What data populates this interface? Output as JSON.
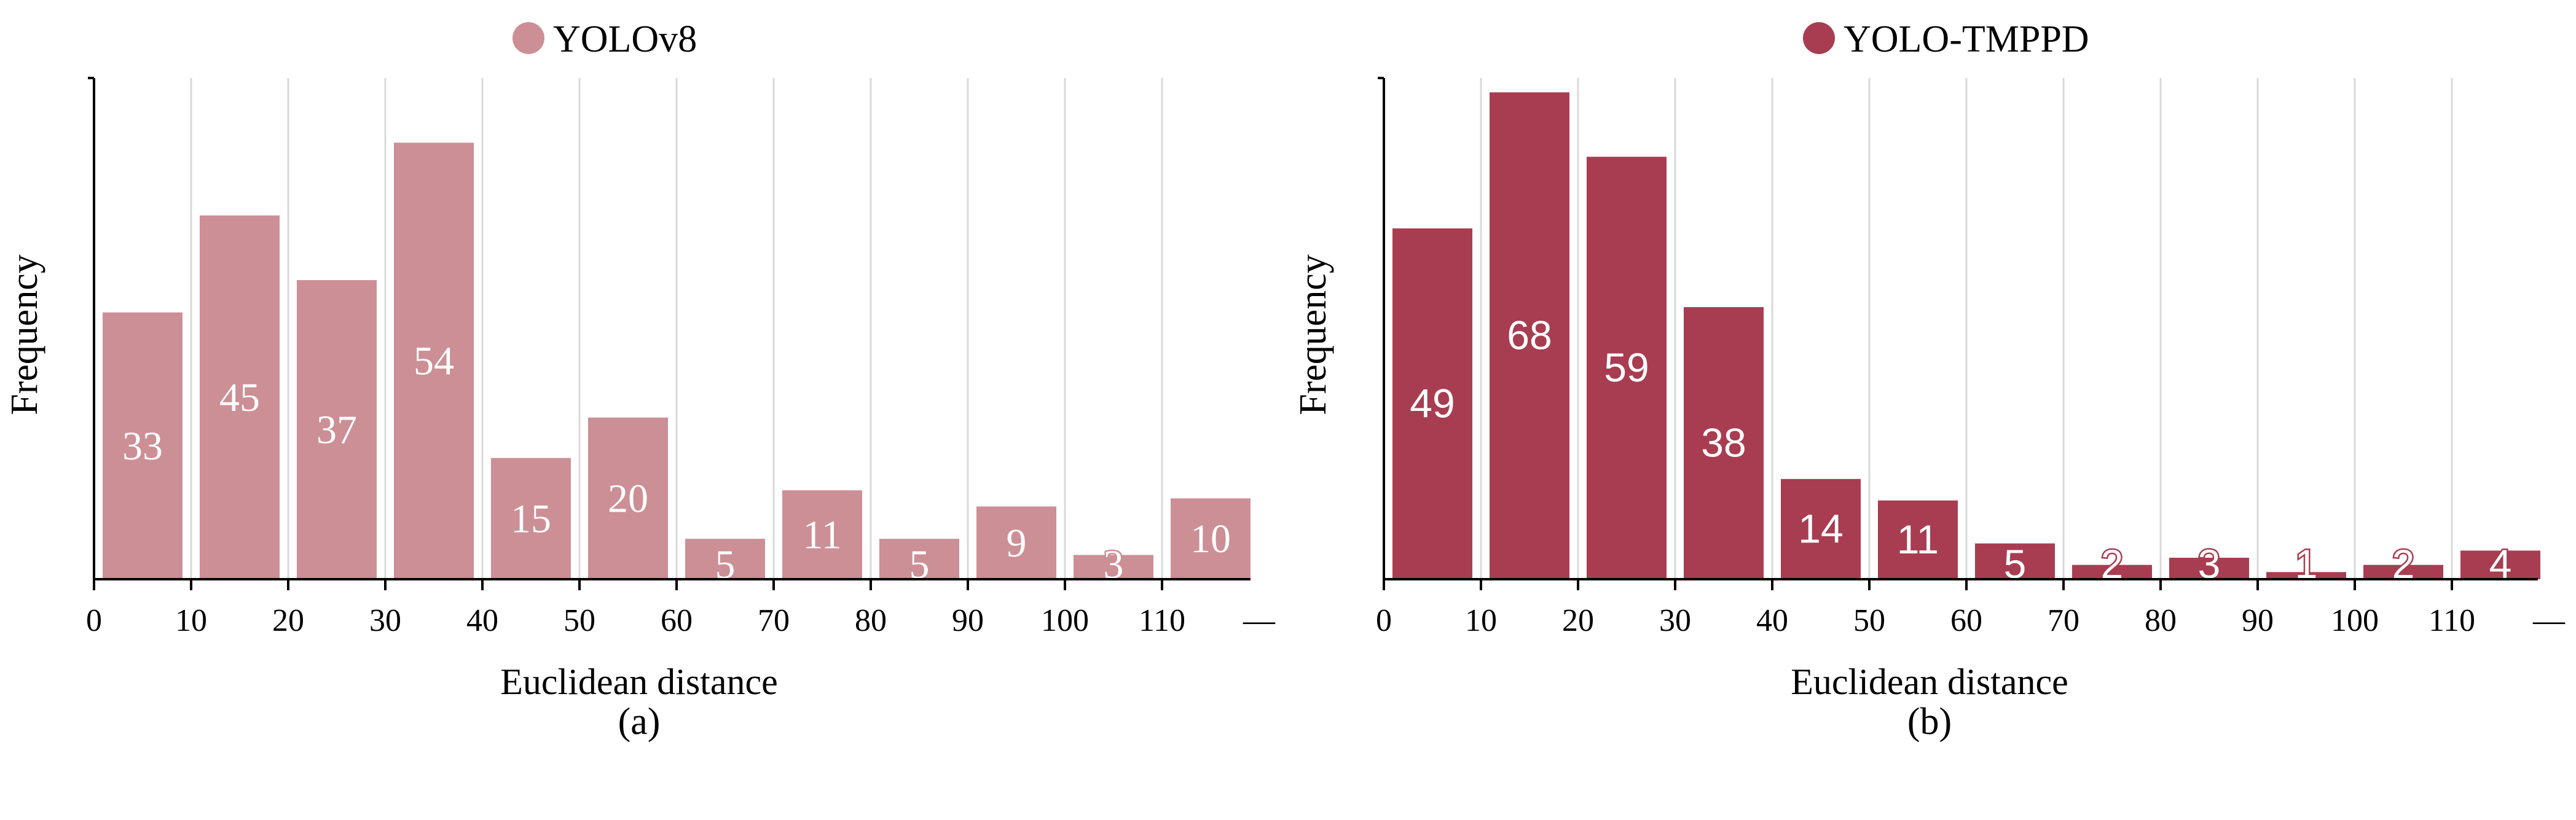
{
  "chart_data": [
    {
      "type": "bar",
      "panel_label": "(a)",
      "legend": "YOLOv8",
      "legend_position": "top-center",
      "xlabel": "Euclidean distance",
      "ylabel": "Frequency",
      "x_ticks": [
        "0",
        "10",
        "20",
        "30",
        "40",
        "50",
        "60",
        "70",
        "80",
        "90",
        "100",
        "110",
        "—"
      ],
      "bins": [
        [
          0,
          10
        ],
        [
          10,
          20
        ],
        [
          20,
          30
        ],
        [
          30,
          40
        ],
        [
          40,
          50
        ],
        [
          50,
          60
        ],
        [
          60,
          70
        ],
        [
          70,
          80
        ],
        [
          80,
          90
        ],
        [
          90,
          100
        ],
        [
          100,
          110
        ],
        [
          110,
          120
        ]
      ],
      "values": [
        33,
        45,
        37,
        54,
        15,
        20,
        5,
        11,
        5,
        9,
        3,
        10
      ],
      "ylim": [
        0,
        62
      ],
      "grid": "vertical",
      "color": "#cc8f96"
    },
    {
      "type": "bar",
      "panel_label": "(b)",
      "legend": "YOLO-TMPPD",
      "legend_position": "top-center",
      "xlabel": "Euclidean distance",
      "ylabel": "Frequency",
      "x_ticks": [
        "0",
        "10",
        "20",
        "30",
        "40",
        "50",
        "60",
        "70",
        "80",
        "90",
        "100",
        "110",
        "—"
      ],
      "bins": [
        [
          0,
          10
        ],
        [
          10,
          20
        ],
        [
          20,
          30
        ],
        [
          30,
          40
        ],
        [
          40,
          50
        ],
        [
          50,
          60
        ],
        [
          60,
          70
        ],
        [
          70,
          80
        ],
        [
          80,
          90
        ],
        [
          90,
          100
        ],
        [
          100,
          110
        ],
        [
          110,
          120
        ]
      ],
      "values": [
        49,
        68,
        59,
        38,
        14,
        11,
        5,
        2,
        3,
        1,
        2,
        4
      ],
      "ylim": [
        0,
        70
      ],
      "grid": "vertical",
      "color": "#a83d51"
    }
  ]
}
